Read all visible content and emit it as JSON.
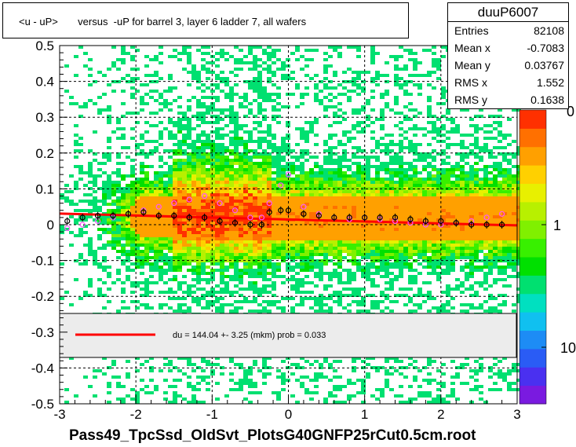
{
  "title": "<u - uP>       versus  -uP for barrel 3, layer 6 ladder 7, all wafers",
  "stats": {
    "name": "duuP6007",
    "rows": [
      {
        "label": "Entries",
        "value": "82108"
      },
      {
        "label": "Mean x",
        "value": "-0.7083"
      },
      {
        "label": "Mean y",
        "value": "0.03767"
      },
      {
        "label": "RMS x",
        "value": "1.552"
      },
      {
        "label": "RMS y",
        "value": "0.1638"
      }
    ]
  },
  "colors": {
    "fit_line": "#ff0000",
    "profile_black": "#000000",
    "profile_magenta": "#ff55ff"
  },
  "chart_data": {
    "type": "heatmap",
    "title": "<u - uP>       versus  -uP for barrel 3, layer 6 ladder 7, all wafers",
    "xlabel": "Pass49_TpcSsd_OldSvt_PlotsG40GNFP25rCut0.5cm.root",
    "ylabel": "",
    "xlim": [
      -3,
      3
    ],
    "ylim": [
      -0.5,
      0.5
    ],
    "x_ticks": [
      "-3",
      "-2",
      "-1",
      "0",
      "1",
      "2",
      "3"
    ],
    "y_ticks": [
      "-0.5",
      "-0.4",
      "-0.3",
      "-0.2",
      "-0.1",
      "0",
      "0.1",
      "0.2",
      "0.3",
      "0.4",
      "0.5"
    ],
    "grid": true,
    "colorbar": {
      "scale": "log",
      "labels": [
        "1",
        "10"
      ],
      "top_label_partial": "0"
    },
    "legend": {
      "placement": "inside-bottom",
      "entries": [
        {
          "text": "du =  144.04 +-  3.25 (mkm) prob = 0.033"
        }
      ]
    },
    "fit_line": {
      "x": [
        -3.0,
        3.0
      ],
      "y": [
        0.031,
        -0.002
      ]
    },
    "profile_mean": {
      "x": [
        -2.9,
        -2.7,
        -2.5,
        -2.3,
        -2.1,
        -1.9,
        -1.7,
        -1.5,
        -1.3,
        -1.1,
        -0.9,
        -0.7,
        -0.5,
        -0.35,
        -0.25,
        -0.1,
        0.0,
        0.2,
        0.4,
        0.6,
        0.8,
        1.0,
        1.2,
        1.4,
        1.6,
        1.8,
        2.0,
        2.2,
        2.4,
        2.6,
        2.8
      ],
      "y": [
        0.01,
        0.02,
        0.025,
        0.025,
        0.03,
        0.035,
        0.025,
        0.025,
        0.02,
        0.02,
        0.01,
        0.005,
        0.0,
        0.0,
        0.035,
        0.04,
        0.04,
        0.03,
        0.025,
        0.02,
        0.02,
        0.02,
        0.02,
        0.02,
        0.015,
        0.01,
        0.01,
        0.005,
        0.0,
        0.0,
        0.0
      ]
    },
    "profile_alt": {
      "x": [
        -2.9,
        -2.7,
        -2.5,
        -2.3,
        -2.1,
        -1.9,
        -1.7,
        -1.5,
        -1.3,
        -1.1,
        -0.9,
        -0.7,
        -0.5,
        -0.35,
        -0.25,
        -0.1,
        0.0,
        0.2,
        0.4,
        0.6,
        0.8,
        1.0,
        1.2,
        1.4,
        1.6,
        1.8,
        2.0,
        2.2,
        2.4,
        2.6,
        2.8
      ],
      "y": [
        -0.01,
        0.0,
        0.01,
        0.02,
        0.03,
        0.04,
        0.05,
        0.06,
        0.07,
        0.08,
        0.06,
        0.04,
        0.02,
        0.02,
        0.06,
        0.11,
        0.14,
        0.05,
        0.03,
        0.02,
        0.015,
        0.02,
        0.015,
        0.01,
        0.005,
        0.0,
        0.0,
        0.005,
        0.01,
        0.02,
        0.03
      ]
    }
  }
}
